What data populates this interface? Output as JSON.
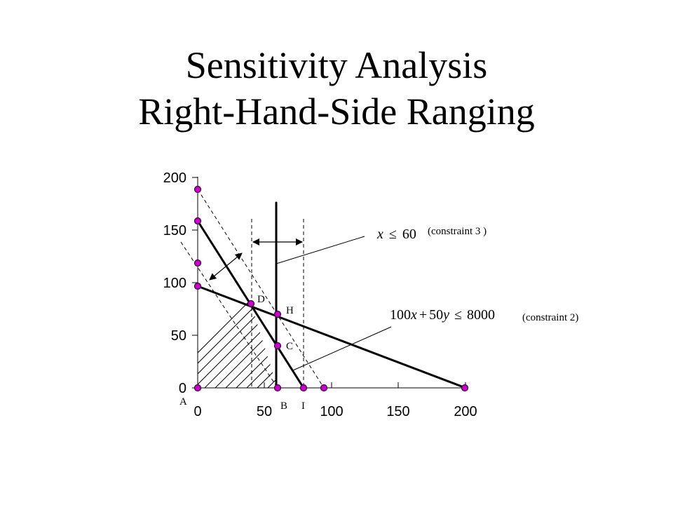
{
  "slide": {
    "title_line1": "Sensitivity Analysis",
    "title_line2": "Right-Hand-Side Ranging"
  },
  "axes": {
    "x_ticks": [
      "0",
      "50",
      "100",
      "150",
      "200"
    ],
    "y_ticks": [
      "0",
      "50",
      "100",
      "150",
      "200"
    ]
  },
  "labels": {
    "point_a": "A",
    "point_b": "B",
    "point_c": "C",
    "point_d": "D",
    "point_h": "H",
    "point_i": "I"
  },
  "constraint3": {
    "lhs": "x",
    "op": "≤",
    "rhs": "60",
    "note": "(constraint 3 )"
  },
  "constraint2": {
    "c1": "100",
    "v1": "x",
    "plus": "+",
    "c2": "50",
    "v2": "y",
    "op": "≤",
    "rhs": "8000",
    "note": "(constraint 2)"
  },
  "colors": {
    "marker_fill": "#cc00cc",
    "marker_stroke": "#3a003a",
    "line": "#000000"
  }
}
